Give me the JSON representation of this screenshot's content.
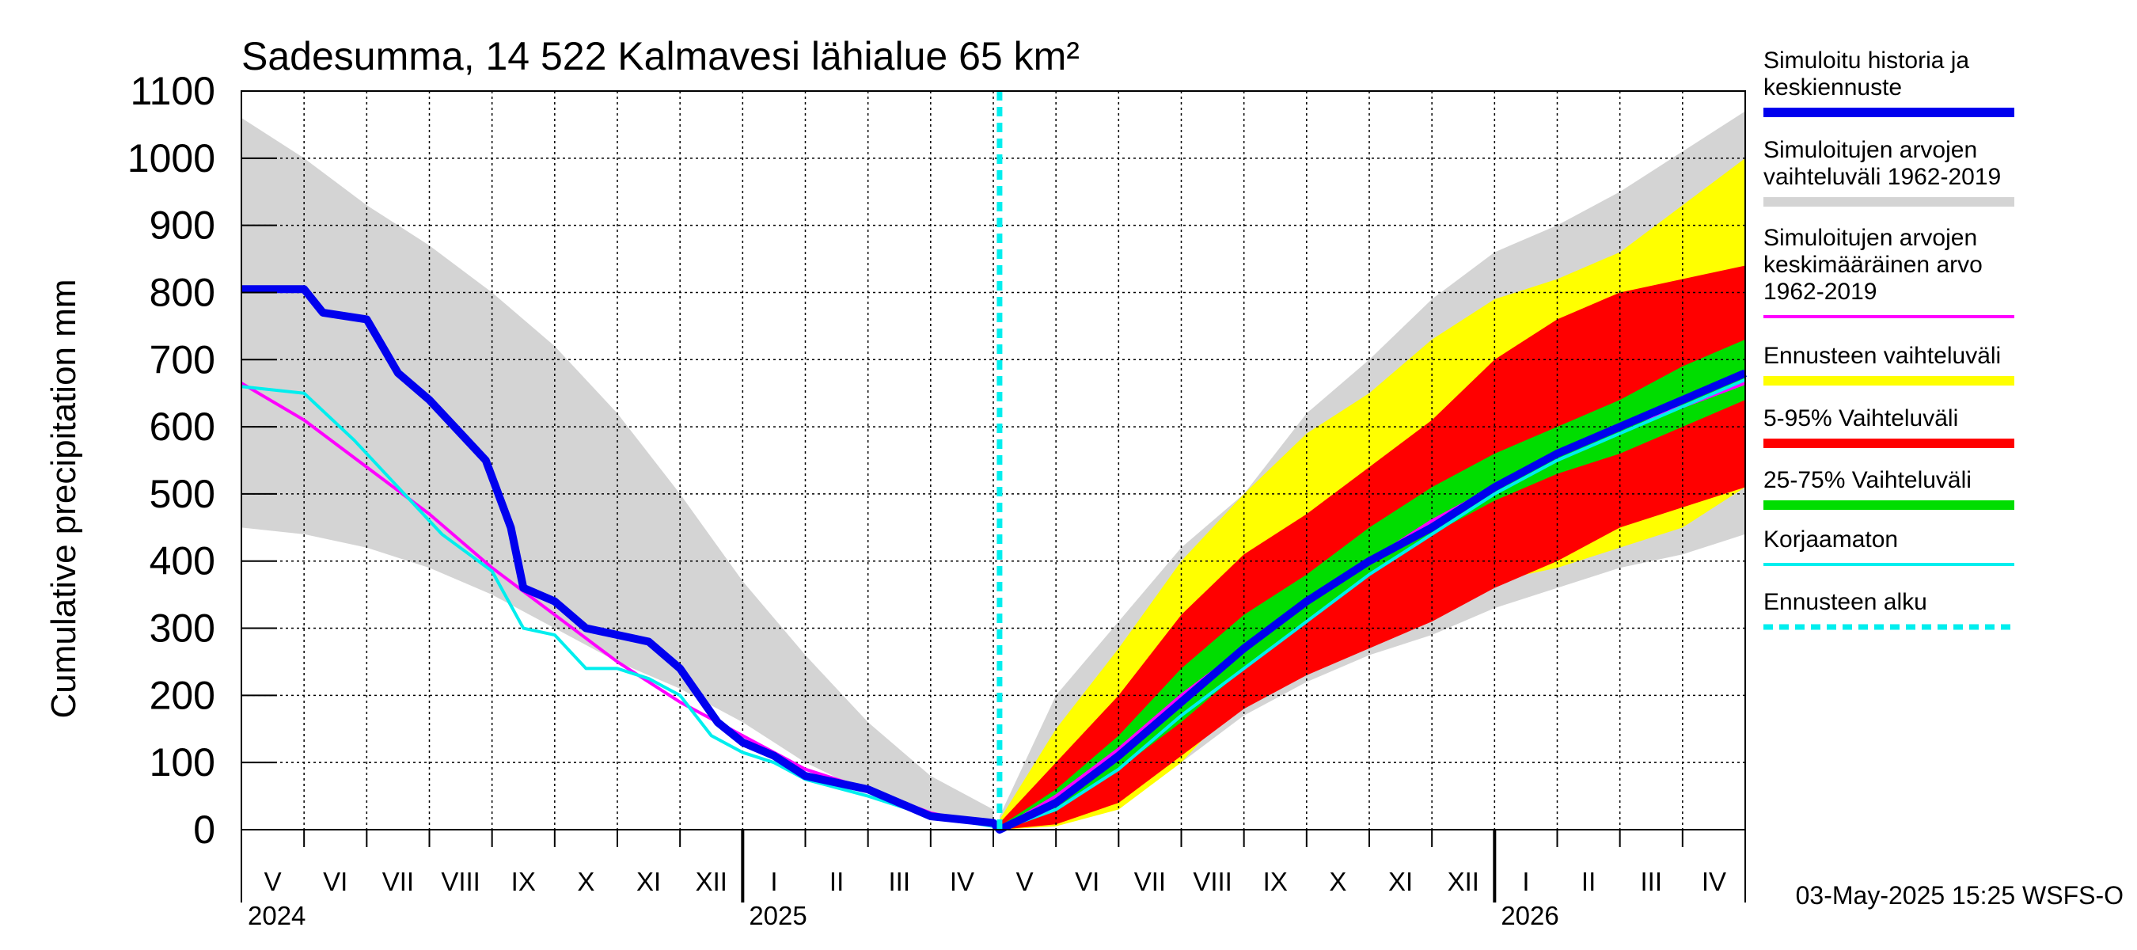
{
  "chart_data": {
    "type": "area",
    "title": "Sadesumma, 14 522 Kalmavesi lähialue 65 km²",
    "ylabel": "Cumulative precipitation   mm",
    "ylim": [
      0,
      1100
    ],
    "yticks": [
      0,
      100,
      200,
      300,
      400,
      500,
      600,
      700,
      800,
      900,
      1000,
      1100
    ],
    "x_unit": "months since 1 May 2024",
    "xlim": [
      0,
      24
    ],
    "forecast_start": 12.1,
    "months": [
      {
        "label": "V",
        "x": 0.5
      },
      {
        "label": "VI",
        "x": 1.5
      },
      {
        "label": "VII",
        "x": 2.5
      },
      {
        "label": "VIII",
        "x": 3.5
      },
      {
        "label": "IX",
        "x": 4.5
      },
      {
        "label": "X",
        "x": 5.5
      },
      {
        "label": "XI",
        "x": 6.5
      },
      {
        "label": "XII",
        "x": 7.5
      },
      {
        "label": "I",
        "x": 8.5
      },
      {
        "label": "II",
        "x": 9.5
      },
      {
        "label": "III",
        "x": 10.5
      },
      {
        "label": "IV",
        "x": 11.5
      },
      {
        "label": "V",
        "x": 12.5
      },
      {
        "label": "VI",
        "x": 13.5
      },
      {
        "label": "VII",
        "x": 14.5
      },
      {
        "label": "VIII",
        "x": 15.5
      },
      {
        "label": "IX",
        "x": 16.5
      },
      {
        "label": "X",
        "x": 17.5
      },
      {
        "label": "XI",
        "x": 18.5
      },
      {
        "label": "XII",
        "x": 19.5
      },
      {
        "label": "I",
        "x": 20.5
      },
      {
        "label": "II",
        "x": 21.5
      },
      {
        "label": "III",
        "x": 22.5
      },
      {
        "label": "IV",
        "x": 23.5
      }
    ],
    "years": [
      {
        "label": "2024",
        "x": 0
      },
      {
        "label": "2025",
        "x": 8
      },
      {
        "label": "2026",
        "x": 20
      }
    ],
    "year_dividers": [
      8,
      20
    ],
    "series": [
      {
        "name": "Simuloitujen arvojen vaihteluväli 1962-2019 (history)",
        "kind": "band",
        "color": "#d4d4d4",
        "x": [
          0,
          1,
          2,
          3,
          4,
          5,
          6,
          7,
          8,
          9,
          10,
          11,
          12
        ],
        "upper": [
          1060,
          1000,
          930,
          870,
          800,
          720,
          620,
          500,
          370,
          260,
          160,
          80,
          30
        ],
        "lower": [
          450,
          440,
          420,
          390,
          350,
          300,
          250,
          210,
          160,
          100,
          55,
          20,
          5
        ]
      },
      {
        "name": "Simuloitujen arvojen vaihteluväli 1962-2019 (forecast)",
        "kind": "band",
        "color": "#d4d4d4",
        "x": [
          12.1,
          13,
          14,
          15,
          16,
          17,
          18,
          19,
          20,
          21,
          22,
          23,
          24
        ],
        "upper": [
          20,
          200,
          310,
          420,
          500,
          620,
          700,
          790,
          860,
          900,
          950,
          1010,
          1070
        ],
        "lower": [
          0,
          10,
          40,
          100,
          170,
          220,
          260,
          290,
          330,
          360,
          390,
          410,
          440
        ]
      },
      {
        "name": "Ennusteen vaihteluväli",
        "kind": "band",
        "color": "#ffff00",
        "x": [
          12.1,
          13,
          14,
          15,
          16,
          17,
          18,
          19,
          20,
          21,
          22,
          23,
          24
        ],
        "upper": [
          15,
          150,
          270,
          400,
          500,
          590,
          650,
          730,
          790,
          820,
          860,
          930,
          1000
        ],
        "lower": [
          0,
          5,
          30,
          100,
          200,
          260,
          300,
          340,
          370,
          390,
          420,
          450,
          510
        ]
      },
      {
        "name": "5-95% Vaihteluväli",
        "kind": "band",
        "color": "#ff0000",
        "x": [
          12.1,
          13,
          14,
          15,
          16,
          17,
          18,
          19,
          20,
          21,
          22,
          23,
          24
        ],
        "upper": [
          10,
          100,
          200,
          320,
          410,
          470,
          540,
          610,
          700,
          760,
          800,
          820,
          840
        ],
        "lower": [
          0,
          8,
          40,
          110,
          180,
          230,
          270,
          310,
          360,
          400,
          450,
          480,
          510
        ]
      },
      {
        "name": "25-75% Vaihteluväli",
        "kind": "band",
        "color": "#00dd00",
        "x": [
          12.1,
          13,
          14,
          15,
          16,
          17,
          18,
          19,
          20,
          21,
          22,
          23,
          24
        ],
        "upper": [
          5,
          60,
          140,
          240,
          320,
          380,
          450,
          510,
          560,
          600,
          640,
          690,
          730
        ],
        "lower": [
          0,
          30,
          90,
          160,
          240,
          310,
          380,
          440,
          490,
          530,
          560,
          600,
          640
        ]
      },
      {
        "name": "Simuloitujen arvojen keskimääräinen arvo 1962-2019",
        "kind": "line",
        "color": "#ff00ff",
        "width": 4,
        "x": [
          0,
          1,
          2,
          3,
          4,
          5,
          6,
          7,
          8,
          9,
          10,
          11,
          12,
          12.1,
          13,
          14,
          15,
          16,
          17,
          18,
          19,
          20,
          21,
          22,
          23,
          24
        ],
        "y": [
          665,
          610,
          540,
          470,
          390,
          320,
          250,
          190,
          140,
          90,
          60,
          25,
          5,
          0,
          50,
          120,
          200,
          270,
          340,
          400,
          460,
          510,
          560,
          600,
          630,
          665
        ]
      },
      {
        "name": "Korjaamaton",
        "kind": "line",
        "color": "#00eeee",
        "width": 4,
        "x": [
          0,
          1,
          1.8,
          2.5,
          3.2,
          4,
          4.5,
          5,
          5.5,
          6,
          6.5,
          7,
          7.5,
          8,
          8.5,
          9,
          10,
          11,
          12,
          12.1,
          13,
          14,
          15,
          16,
          17,
          18,
          19,
          20,
          21,
          22,
          23,
          24
        ],
        "y": [
          660,
          650,
          580,
          510,
          440,
          385,
          300,
          290,
          240,
          240,
          225,
          200,
          140,
          115,
          100,
          75,
          50,
          20,
          5,
          0,
          30,
          90,
          170,
          240,
          310,
          380,
          440,
          500,
          550,
          590,
          630,
          670
        ]
      },
      {
        "name": "Simuloitu historia ja keskiennuste",
        "kind": "line",
        "color": "#0000ee",
        "width": 10,
        "x": [
          0,
          1,
          1.3,
          2,
          2.5,
          3,
          3.5,
          3.9,
          4.3,
          4.5,
          5,
          5.5,
          6,
          6.5,
          7,
          7.3,
          7.6,
          8,
          8.5,
          9,
          10,
          11,
          12,
          12.1,
          13,
          14,
          15,
          16,
          17,
          18,
          19,
          20,
          21,
          22,
          23,
          24
        ],
        "y": [
          805,
          805,
          770,
          760,
          680,
          640,
          590,
          550,
          450,
          360,
          340,
          300,
          290,
          280,
          240,
          200,
          160,
          130,
          110,
          80,
          60,
          20,
          10,
          0,
          40,
          110,
          190,
          270,
          340,
          400,
          450,
          510,
          560,
          600,
          640,
          680
        ]
      }
    ]
  },
  "legend": [
    {
      "lines": [
        "Simuloitu historia ja",
        "keskiennuste"
      ],
      "color": "#0000ee",
      "style": "thick"
    },
    {
      "lines": [
        "Simuloitujen arvojen",
        "vaihteluväli 1962-2019"
      ],
      "color": "#d4d4d4",
      "style": "thick"
    },
    {
      "lines": [
        "Simuloitujen arvojen",
        "keskimääräinen arvo",
        "   1962-2019"
      ],
      "color": "#ff00ff",
      "style": "thin"
    },
    {
      "lines": [
        "Ennusteen vaihteluväli"
      ],
      "color": "#ffff00",
      "style": "thick"
    },
    {
      "lines": [
        "5-95% Vaihteluväli"
      ],
      "color": "#ff0000",
      "style": "thick"
    },
    {
      "lines": [
        "25-75% Vaihteluväli"
      ],
      "color": "#00dd00",
      "style": "thick"
    },
    {
      "lines": [
        "Korjaamaton"
      ],
      "color": "#00eeee",
      "style": "thin"
    },
    {
      "lines": [
        "Ennusteen alku"
      ],
      "color": "#00eeee",
      "style": "dashed"
    }
  ],
  "footer": "03-May-2025 15:25 WSFS-O"
}
